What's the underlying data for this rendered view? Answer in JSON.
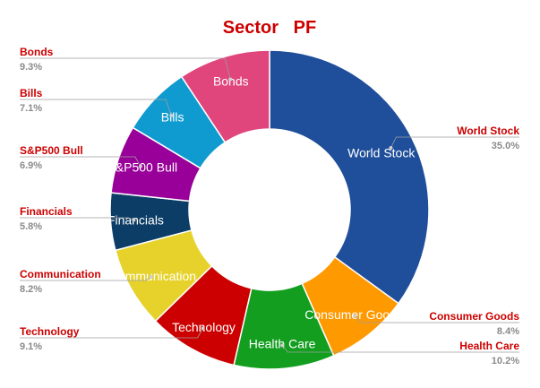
{
  "chart_data": {
    "type": "pie",
    "donut": true,
    "title": "Sector   PF",
    "start_at": "top, clockwise",
    "slices": [
      {
        "label": "World Stock",
        "value": 35.0,
        "percent_label": "35.0%",
        "color": "#1f4e9a",
        "label_side": "right"
      },
      {
        "label": "Consumer Goods",
        "value": 8.4,
        "percent_label": "8.4%",
        "color": "#ff9900",
        "label_side": "right"
      },
      {
        "label": "Health Care",
        "value": 10.2,
        "percent_label": "10.2%",
        "color": "#139e1f",
        "label_side": "right"
      },
      {
        "label": "Technology",
        "value": 9.1,
        "percent_label": "9.1%",
        "color": "#cc0000",
        "label_side": "left"
      },
      {
        "label": "Communication",
        "value": 8.2,
        "percent_label": "8.2%",
        "color": "#e6d22a",
        "label_side": "left"
      },
      {
        "label": "Financials",
        "value": 5.8,
        "percent_label": "5.8%",
        "color": "#0b3d66",
        "label_side": "left"
      },
      {
        "label": "S&P500 Bull",
        "value": 6.9,
        "percent_label": "6.9%",
        "color": "#990099",
        "label_side": "left"
      },
      {
        "label": "Bills",
        "value": 7.1,
        "percent_label": "7.1%",
        "color": "#0f9bcf",
        "label_side": "left"
      },
      {
        "label": "Bonds",
        "value": 9.3,
        "percent_label": "9.3%",
        "color": "#e0457b",
        "label_side": "left"
      }
    ],
    "label_color": "#cc0000",
    "title_color": "#cc0000"
  }
}
